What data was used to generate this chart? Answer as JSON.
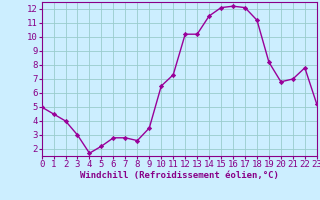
{
  "x": [
    0,
    1,
    2,
    3,
    4,
    5,
    6,
    7,
    8,
    9,
    10,
    11,
    12,
    13,
    14,
    15,
    16,
    17,
    18,
    19,
    20,
    21,
    22,
    23
  ],
  "y": [
    5.0,
    4.5,
    4.0,
    3.0,
    1.7,
    2.2,
    2.8,
    2.8,
    2.6,
    3.5,
    6.5,
    7.3,
    10.2,
    10.2,
    11.5,
    12.1,
    12.2,
    12.1,
    11.2,
    8.2,
    6.8,
    7.0,
    7.8,
    5.2
  ],
  "line_color": "#990099",
  "marker": "D",
  "marker_size": 2.2,
  "bg_color": "#cceeff",
  "grid_color": "#99cccc",
  "xlabel": "Windchill (Refroidissement éolien,°C)",
  "xlim": [
    0,
    23
  ],
  "ylim": [
    1.5,
    12.5
  ],
  "yticks": [
    2,
    3,
    4,
    5,
    6,
    7,
    8,
    9,
    10,
    11,
    12
  ],
  "xticks": [
    0,
    1,
    2,
    3,
    4,
    5,
    6,
    7,
    8,
    9,
    10,
    11,
    12,
    13,
    14,
    15,
    16,
    17,
    18,
    19,
    20,
    21,
    22,
    23
  ],
  "spine_color": "#880088",
  "tick_color": "#880088",
  "label_color": "#880088",
  "xlabel_fontsize": 6.5,
  "tick_fontsize": 6.5
}
